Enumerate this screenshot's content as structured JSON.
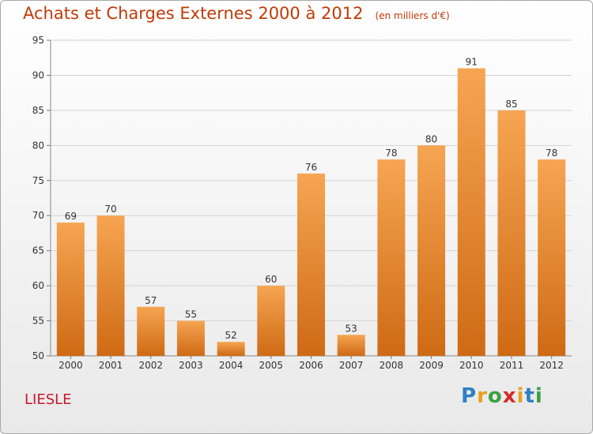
{
  "header": {
    "title": "Achats et Charges Externes 2000 à 2012",
    "subtitle": "(en milliers d'€)"
  },
  "footer": {
    "city": "LIESLE",
    "logo": [
      "P",
      "r",
      "o",
      "x",
      "i",
      "t",
      "i"
    ]
  },
  "colors": {
    "bar_top": "#f6a552",
    "bar_bottom": "#cf6a14",
    "title": "#c13a07",
    "city": "#c81830",
    "logo": [
      "#2f7fc4",
      "#e8a020",
      "#3aa040",
      "#d52a2a",
      "#e8a020",
      "#2f7fc4",
      "#3aa040"
    ]
  },
  "chart_data": {
    "type": "bar",
    "title": "Achats et Charges Externes 2000 à 2012",
    "subtitle": "(en milliers d'€)",
    "categories": [
      "2000",
      "2001",
      "2002",
      "2003",
      "2004",
      "2005",
      "2006",
      "2007",
      "2008",
      "2009",
      "2010",
      "2011",
      "2012"
    ],
    "values": [
      69,
      70,
      57,
      55,
      52,
      60,
      76,
      53,
      78,
      80,
      91,
      85,
      78
    ],
    "ylim": [
      50,
      95
    ],
    "yticks": [
      50,
      55,
      60,
      65,
      70,
      75,
      80,
      85,
      90,
      95
    ],
    "xlabel": "",
    "ylabel": "",
    "grid": true,
    "data_labels": true
  }
}
